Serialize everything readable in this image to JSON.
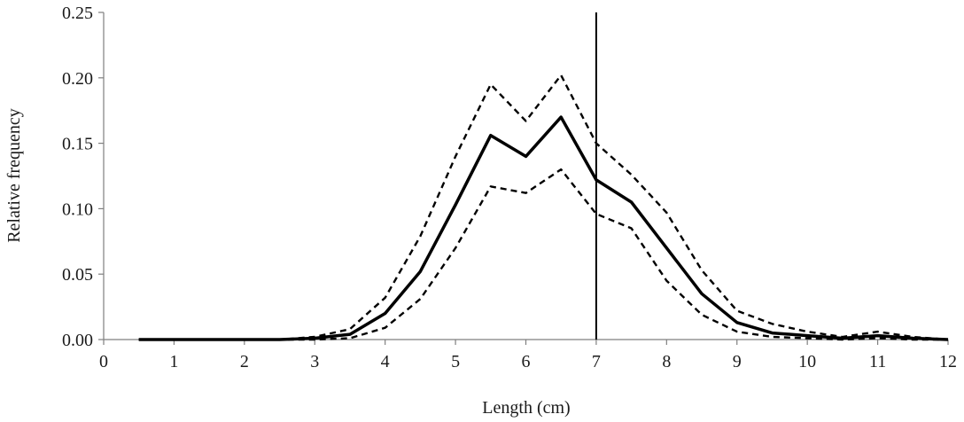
{
  "chart_data": {
    "type": "line",
    "title": "",
    "xlabel": "Length (cm)",
    "ylabel": "Relative frequency",
    "xlim": [
      0,
      12
    ],
    "ylim": [
      0,
      0.25
    ],
    "x_ticks": [
      "0",
      "1",
      "2",
      "3",
      "4",
      "5",
      "6",
      "7",
      "8",
      "9",
      "10",
      "11",
      "12"
    ],
    "y_ticks": [
      "0.00",
      "0.05",
      "0.10",
      "0.15",
      "0.20",
      "0.25"
    ],
    "grid": false,
    "legend": "none",
    "vertical_line_x": 7,
    "x": [
      0.5,
      1.0,
      1.5,
      2.0,
      2.5,
      3.0,
      3.5,
      4.0,
      4.5,
      5.0,
      5.5,
      6.0,
      6.5,
      7.0,
      7.5,
      8.0,
      8.5,
      9.0,
      9.5,
      10.0,
      10.5,
      11.0,
      11.5,
      12.0
    ],
    "series": [
      {
        "style": "solid",
        "values": [
          0,
          0,
          0,
          0,
          0,
          0.001,
          0.004,
          0.02,
          0.052,
          0.103,
          0.156,
          0.14,
          0.17,
          0.122,
          0.105,
          0.07,
          0.035,
          0.013,
          0.005,
          0.003,
          0.001,
          0.003,
          0.001,
          0
        ]
      },
      {
        "style": "dashed",
        "values": [
          0,
          0,
          0,
          0,
          0,
          0.002,
          0.008,
          0.032,
          0.079,
          0.14,
          0.195,
          0.167,
          0.202,
          0.15,
          0.126,
          0.097,
          0.053,
          0.022,
          0.012,
          0.006,
          0.002,
          0.006,
          0.002,
          0
        ]
      },
      {
        "style": "dashed",
        "values": [
          0,
          0,
          0,
          0,
          0,
          0,
          0.001,
          0.009,
          0.031,
          0.07,
          0.117,
          0.112,
          0.13,
          0.096,
          0.085,
          0.045,
          0.019,
          0.006,
          0.002,
          0.001,
          0,
          0.001,
          0,
          0
        ]
      }
    ]
  }
}
